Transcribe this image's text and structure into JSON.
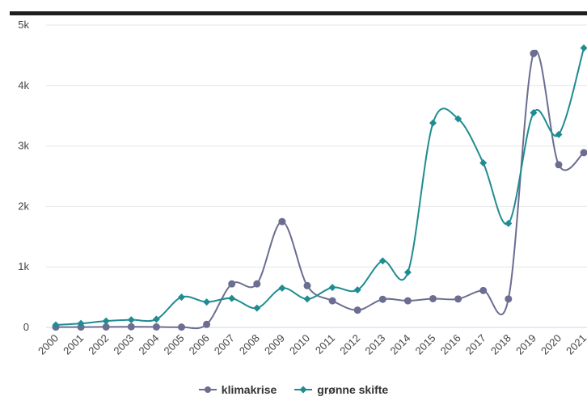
{
  "chart_data": {
    "type": "line",
    "x": [
      "2000",
      "2001",
      "2002",
      "2003",
      "2004",
      "2005",
      "2006",
      "2007",
      "2008",
      "2009",
      "2010",
      "2011",
      "2012",
      "2013",
      "2014",
      "2015",
      "2016",
      "2017",
      "2018",
      "2019",
      "2020",
      "2021"
    ],
    "series": [
      {
        "name": "klimakrise",
        "color": "#6b6d91",
        "marker": "circle",
        "values": [
          5,
          5,
          8,
          10,
          8,
          5,
          50,
          720,
          720,
          1750,
          690,
          440,
          285,
          465,
          440,
          475,
          470,
          610,
          470,
          4530,
          2690,
          2890
        ]
      },
      {
        "name": "grønne skifte",
        "color": "#1f8c91",
        "marker": "diamond",
        "values": [
          40,
          65,
          105,
          125,
          135,
          500,
          420,
          480,
          320,
          650,
          470,
          660,
          620,
          1100,
          910,
          3380,
          3450,
          2720,
          1720,
          3550,
          3190,
          4620
        ]
      }
    ],
    "y_ticks": [
      "0",
      "1k",
      "2k",
      "3k",
      "4k",
      "5k"
    ],
    "ylim": [
      0,
      5000
    ],
    "grid": true,
    "legend_position": "bottom-center"
  }
}
